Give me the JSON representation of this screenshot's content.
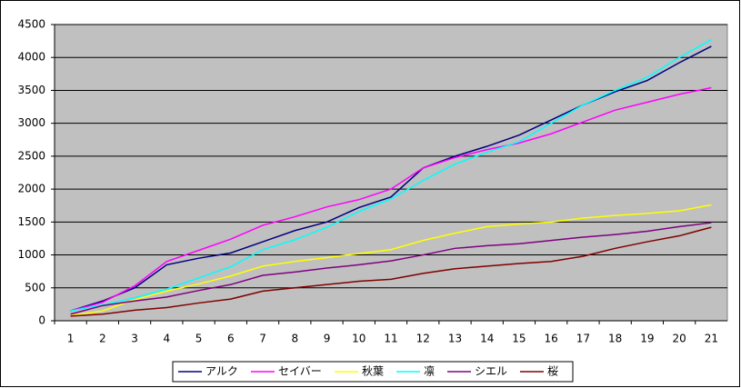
{
  "chart_data": {
    "type": "line",
    "categories": [
      "1",
      "2",
      "3",
      "4",
      "5",
      "6",
      "7",
      "8",
      "9",
      "10",
      "11",
      "12",
      "13",
      "14",
      "15",
      "16",
      "17",
      "18",
      "19",
      "20",
      "21"
    ],
    "series": [
      {
        "name": "アルク",
        "color": "#000080",
        "values": [
          150,
          300,
          500,
          850,
          950,
          1030,
          1200,
          1370,
          1500,
          1720,
          1880,
          2320,
          2500,
          2650,
          2820,
          3050,
          3280,
          3480,
          3650,
          3920,
          4170
        ]
      },
      {
        "name": "セイバー",
        "color": "#ff00ff",
        "values": [
          150,
          280,
          530,
          900,
          1070,
          1240,
          1450,
          1580,
          1730,
          1840,
          2000,
          2320,
          2480,
          2600,
          2700,
          2840,
          3020,
          3200,
          3320,
          3440,
          3540
        ]
      },
      {
        "name": "秋葉",
        "color": "#ffff00",
        "values": [
          80,
          150,
          320,
          450,
          560,
          680,
          830,
          900,
          960,
          1020,
          1080,
          1220,
          1330,
          1430,
          1470,
          1500,
          1560,
          1600,
          1630,
          1670,
          1760
        ]
      },
      {
        "name": "凛",
        "color": "#00ffff",
        "values": [
          150,
          240,
          350,
          480,
          650,
          820,
          1080,
          1230,
          1420,
          1660,
          1850,
          2130,
          2380,
          2560,
          2720,
          3000,
          3280,
          3500,
          3700,
          4000,
          4270
        ]
      },
      {
        "name": "シエル",
        "color": "#800080",
        "values": [
          100,
          230,
          300,
          360,
          460,
          550,
          690,
          740,
          800,
          850,
          910,
          1000,
          1100,
          1140,
          1170,
          1220,
          1270,
          1310,
          1360,
          1430,
          1490
        ]
      },
      {
        "name": "桜",
        "color": "#800000",
        "values": [
          70,
          100,
          160,
          200,
          270,
          330,
          450,
          500,
          550,
          600,
          630,
          720,
          790,
          830,
          870,
          900,
          980,
          1100,
          1200,
          1290,
          1420
        ]
      }
    ],
    "ylim": [
      0,
      4500
    ],
    "yticks": [
      0,
      500,
      1000,
      1500,
      2000,
      2500,
      3000,
      3500,
      4000,
      4500
    ],
    "grid": true,
    "plot_background": "#c0c0c0",
    "legend": "bottom"
  }
}
